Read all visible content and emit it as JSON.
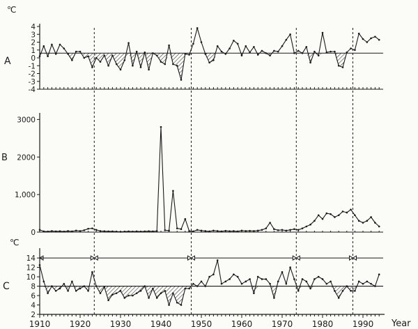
{
  "figure": {
    "xlabel": "Year",
    "x_ticks": [
      "1910",
      "1920",
      "1930",
      "1940",
      "1950",
      "1960",
      "1970",
      "1980",
      "1990"
    ],
    "regime_shift_years": [
      1923.5,
      1947.5,
      1973.5,
      1987.5
    ]
  },
  "chart_data": [
    {
      "id": "A",
      "panel_letter": "A",
      "type": "line",
      "unit": "℃",
      "ylim": [
        -4,
        4
      ],
      "y_ticks": [
        "4",
        "3",
        "2",
        "1",
        "0",
        "-1",
        "-2",
        "-3",
        "-4"
      ],
      "baseline": 0.6,
      "x": [
        1910,
        1911,
        1912,
        1913,
        1914,
        1915,
        1916,
        1917,
        1918,
        1919,
        1920,
        1921,
        1922,
        1923,
        1924,
        1925,
        1926,
        1927,
        1928,
        1929,
        1930,
        1931,
        1932,
        1933,
        1934,
        1935,
        1936,
        1937,
        1938,
        1939,
        1940,
        1941,
        1942,
        1943,
        1944,
        1945,
        1946,
        1947,
        1948,
        1949,
        1950,
        1951,
        1952,
        1953,
        1954,
        1955,
        1956,
        1957,
        1958,
        1959,
        1960,
        1961,
        1962,
        1963,
        1964,
        1965,
        1966,
        1967,
        1968,
        1969,
        1970,
        1971,
        1972,
        1973,
        1974,
        1975,
        1976,
        1977,
        1978,
        1979,
        1980,
        1981,
        1982,
        1983,
        1984,
        1985,
        1986,
        1987,
        1988,
        1989,
        1990,
        1991,
        1992,
        1993,
        1994
      ],
      "values": [
        0.2,
        1.5,
        0.2,
        1.7,
        0.5,
        1.7,
        1.2,
        0.5,
        -0.3,
        0.8,
        0.8,
        0.0,
        0.2,
        -1.2,
        0.0,
        -0.5,
        0.3,
        -1.0,
        0.3,
        -0.8,
        -1.5,
        -0.3,
        1.9,
        -1.0,
        0.8,
        -1.2,
        0.7,
        -1.5,
        0.6,
        0.3,
        -0.5,
        -0.8,
        1.6,
        -0.8,
        -1.0,
        -2.8,
        0.5,
        0.4,
        1.8,
        3.8,
        2.0,
        0.5,
        -0.6,
        -0.3,
        1.5,
        0.8,
        0.5,
        1.2,
        2.2,
        1.8,
        0.3,
        1.5,
        0.7,
        1.4,
        0.4,
        0.9,
        0.6,
        0.3,
        0.9,
        0.8,
        1.5,
        2.3,
        3.0,
        0.6,
        0.9,
        0.6,
        1.4,
        -0.6,
        0.8,
        0.3,
        3.2,
        0.7,
        0.8,
        0.8,
        -1.0,
        -1.2,
        0.7,
        1.2,
        1.0,
        3.1,
        2.4,
        2.0,
        2.5,
        2.7,
        2.3
      ]
    },
    {
      "id": "B",
      "panel_letter": "B",
      "type": "line",
      "ylim": [
        0,
        3100
      ],
      "y_ticks": [
        "3000",
        "2000",
        "1,000",
        "0"
      ],
      "x": [
        1910,
        1911,
        1912,
        1913,
        1914,
        1915,
        1916,
        1917,
        1918,
        1919,
        1920,
        1921,
        1922,
        1923,
        1924,
        1925,
        1926,
        1927,
        1928,
        1929,
        1930,
        1931,
        1932,
        1933,
        1934,
        1935,
        1936,
        1937,
        1938,
        1939,
        1940,
        1941,
        1942,
        1943,
        1944,
        1945,
        1946,
        1947,
        1948,
        1949,
        1950,
        1951,
        1952,
        1953,
        1954,
        1955,
        1956,
        1957,
        1958,
        1959,
        1960,
        1961,
        1962,
        1963,
        1964,
        1965,
        1966,
        1967,
        1968,
        1969,
        1970,
        1971,
        1972,
        1973,
        1974,
        1975,
        1976,
        1977,
        1978,
        1979,
        1980,
        1981,
        1982,
        1983,
        1984,
        1985,
        1986,
        1987,
        1988,
        1989,
        1990,
        1991,
        1992,
        1993,
        1994
      ],
      "values": [
        60,
        20,
        15,
        30,
        20,
        25,
        15,
        30,
        20,
        40,
        30,
        50,
        90,
        100,
        60,
        30,
        25,
        20,
        20,
        15,
        10,
        15,
        20,
        15,
        20,
        15,
        20,
        25,
        20,
        30,
        2800,
        50,
        40,
        1100,
        100,
        80,
        350,
        30,
        20,
        60,
        40,
        30,
        20,
        40,
        30,
        20,
        35,
        25,
        30,
        20,
        40,
        30,
        35,
        30,
        40,
        60,
        100,
        250,
        80,
        50,
        60,
        40,
        60,
        80,
        60,
        100,
        150,
        200,
        300,
        450,
        350,
        500,
        480,
        400,
        450,
        550,
        520,
        600,
        450,
        300,
        250,
        300,
        400,
        250,
        150
      ]
    },
    {
      "id": "C",
      "panel_letter": "C",
      "type": "line",
      "unit": "℃",
      "ylim": [
        2,
        15.5
      ],
      "y_ticks": [
        "14",
        "12",
        "10",
        "8",
        "6",
        "4",
        "2"
      ],
      "baseline": 8.0,
      "x": [
        1910,
        1911,
        1912,
        1913,
        1914,
        1915,
        1916,
        1917,
        1918,
        1919,
        1920,
        1921,
        1922,
        1923,
        1924,
        1925,
        1926,
        1927,
        1928,
        1929,
        1930,
        1931,
        1932,
        1933,
        1934,
        1935,
        1936,
        1937,
        1938,
        1939,
        1940,
        1941,
        1942,
        1943,
        1944,
        1945,
        1946,
        1947,
        1948,
        1949,
        1950,
        1951,
        1952,
        1953,
        1954,
        1955,
        1956,
        1957,
        1958,
        1959,
        1960,
        1961,
        1962,
        1963,
        1964,
        1965,
        1966,
        1967,
        1968,
        1969,
        1970,
        1971,
        1972,
        1973,
        1974,
        1975,
        1976,
        1977,
        1978,
        1979,
        1980,
        1981,
        1982,
        1983,
        1984,
        1985,
        1986,
        1987,
        1988,
        1989,
        1990,
        1991,
        1992,
        1993,
        1994
      ],
      "values": [
        12.5,
        9.0,
        6.5,
        8.0,
        7.0,
        7.5,
        8.5,
        7.0,
        9.0,
        7.0,
        7.5,
        8.0,
        7.0,
        11.0,
        8.0,
        6.5,
        7.8,
        5.0,
        6.2,
        6.5,
        7.0,
        5.5,
        6.0,
        6.0,
        6.5,
        7.0,
        8.0,
        5.5,
        7.5,
        5.5,
        6.5,
        7.0,
        4.0,
        6.5,
        4.5,
        4.0,
        7.5,
        7.5,
        8.5,
        8.0,
        9.0,
        8.0,
        10.0,
        10.5,
        13.5,
        8.5,
        9.0,
        9.5,
        10.5,
        10.0,
        8.5,
        9.0,
        9.5,
        6.5,
        10.0,
        9.5,
        9.5,
        8.5,
        5.5,
        9.0,
        11.0,
        8.5,
        12.0,
        9.5,
        7.0,
        9.5,
        9.0,
        7.5,
        9.5,
        10.0,
        9.5,
        8.5,
        9.0,
        7.0,
        5.5,
        7.0,
        8.0,
        7.0,
        7.0,
        9.0,
        8.5,
        9.0,
        8.5,
        8.0,
        10.5
      ],
      "regime_line_value": 14.0
    }
  ]
}
